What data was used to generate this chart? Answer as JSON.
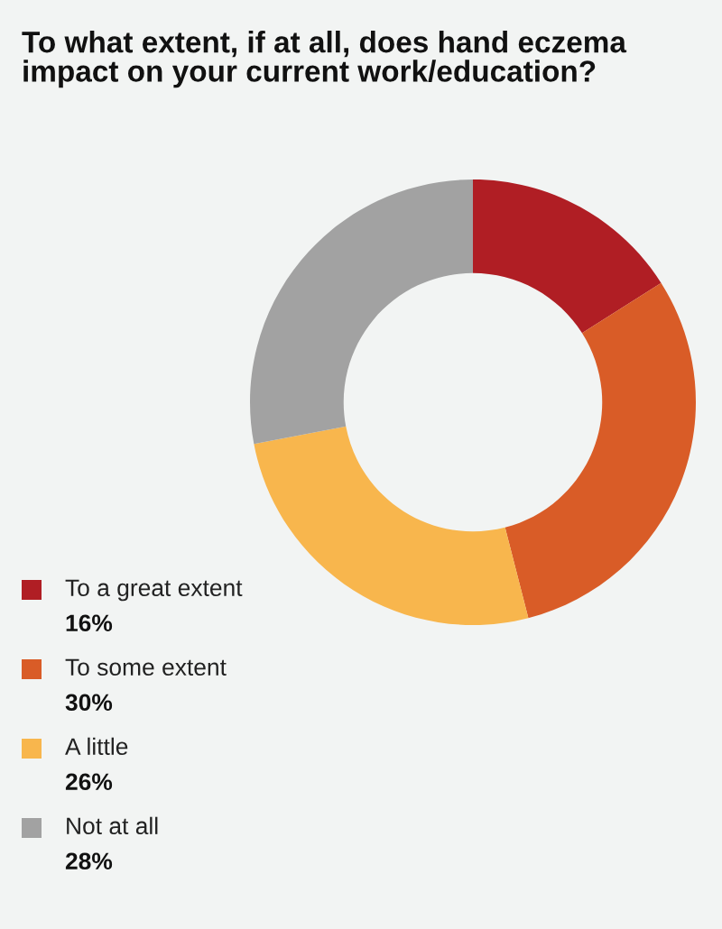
{
  "chart_data": {
    "type": "donut",
    "title": "To what extent, if at all, does hand eczema impact on your current work/education?",
    "categories": [
      "To a great extent",
      "To some extent",
      "A little",
      "Not at all"
    ],
    "values": [
      16,
      30,
      26,
      28
    ],
    "value_labels": [
      "16%",
      "30%",
      "26%",
      "28%"
    ],
    "colors": [
      "#b01e24",
      "#d95c27",
      "#f8b64d",
      "#a2a2a2"
    ],
    "legend": "bottom left"
  }
}
